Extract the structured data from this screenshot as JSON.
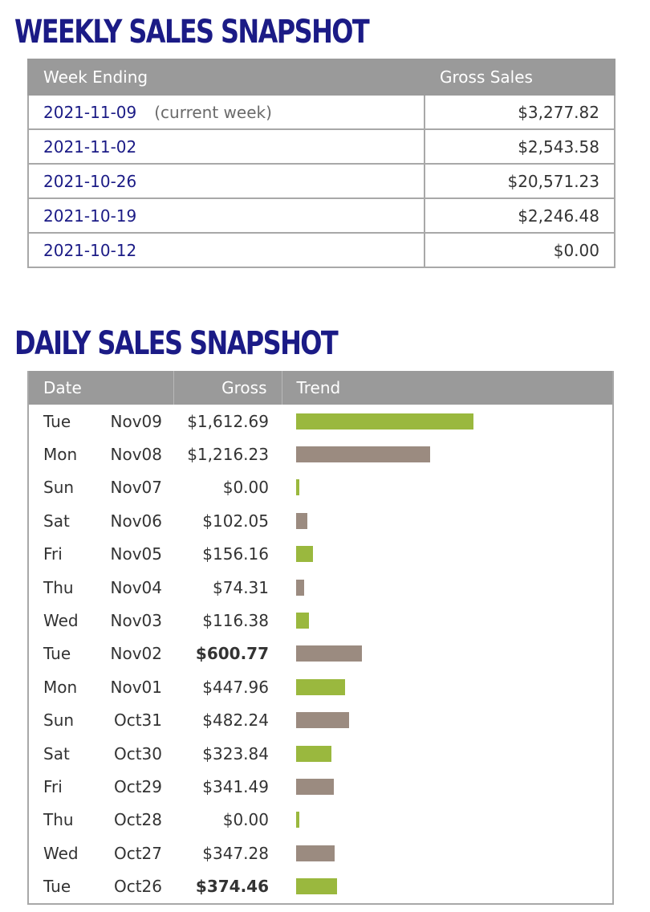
{
  "weekly": {
    "title": "WEEKLY SALES SNAPSHOT",
    "headers": {
      "week_ending": "Week Ending",
      "gross_sales": "Gross Sales"
    },
    "rows": [
      {
        "date": "2021-11-09",
        "note": "(current week)",
        "gross": "$3,277.82"
      },
      {
        "date": "2021-11-02",
        "note": "",
        "gross": "$2,543.58"
      },
      {
        "date": "2021-10-26",
        "note": "",
        "gross": "$20,571.23"
      },
      {
        "date": "2021-10-19",
        "note": "",
        "gross": "$2,246.48"
      },
      {
        "date": "2021-10-12",
        "note": "",
        "gross": "$0.00"
      }
    ]
  },
  "daily": {
    "title": "DAILY SALES SNAPSHOT",
    "headers": {
      "date": "Date",
      "gross": "Gross",
      "trend": "Trend"
    },
    "colors": {
      "positive": "#9ab83e",
      "negative": "#9b8b80"
    },
    "rows": [
      {
        "dow": "Tue",
        "md": "Nov09",
        "gross": "$1,612.69",
        "value": 1612.69,
        "bold": false,
        "color": "positive"
      },
      {
        "dow": "Mon",
        "md": "Nov08",
        "gross": "$1,216.23",
        "value": 1216.23,
        "bold": false,
        "color": "negative"
      },
      {
        "dow": "Sun",
        "md": "Nov07",
        "gross": "$0.00",
        "value": 0,
        "bold": false,
        "color": "positive"
      },
      {
        "dow": "Sat",
        "md": "Nov06",
        "gross": "$102.05",
        "value": 102.05,
        "bold": false,
        "color": "negative"
      },
      {
        "dow": "Fri",
        "md": "Nov05",
        "gross": "$156.16",
        "value": 156.16,
        "bold": false,
        "color": "positive"
      },
      {
        "dow": "Thu",
        "md": "Nov04",
        "gross": "$74.31",
        "value": 74.31,
        "bold": false,
        "color": "negative"
      },
      {
        "dow": "Wed",
        "md": "Nov03",
        "gross": "$116.38",
        "value": 116.38,
        "bold": false,
        "color": "positive"
      },
      {
        "dow": "Tue",
        "md": "Nov02",
        "gross": "$600.77",
        "value": 600.77,
        "bold": true,
        "color": "negative"
      },
      {
        "dow": "Mon",
        "md": "Nov01",
        "gross": "$447.96",
        "value": 447.96,
        "bold": false,
        "color": "positive"
      },
      {
        "dow": "Sun",
        "md": "Oct31",
        "gross": "$482.24",
        "value": 482.24,
        "bold": false,
        "color": "negative"
      },
      {
        "dow": "Sat",
        "md": "Oct30",
        "gross": "$323.84",
        "value": 323.84,
        "bold": false,
        "color": "positive"
      },
      {
        "dow": "Fri",
        "md": "Oct29",
        "gross": "$341.49",
        "value": 341.49,
        "bold": false,
        "color": "negative"
      },
      {
        "dow": "Thu",
        "md": "Oct28",
        "gross": "$0.00",
        "value": 0,
        "bold": false,
        "color": "positive"
      },
      {
        "dow": "Wed",
        "md": "Oct27",
        "gross": "$347.28",
        "value": 347.28,
        "bold": false,
        "color": "negative"
      },
      {
        "dow": "Tue",
        "md": "Oct26",
        "gross": "$374.46",
        "value": 374.46,
        "bold": true,
        "color": "positive"
      }
    ]
  }
}
